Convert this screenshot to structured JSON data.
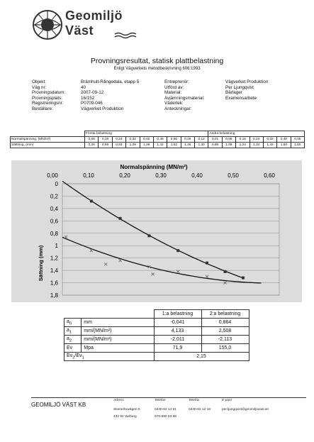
{
  "header": {
    "logo_line1": "Geomiljö",
    "logo_line2": "Väst",
    "title": "Provningsresultat, statisk plattbelastning",
    "subtitle": "Enligt Vägverkets metodbeskrivning 606:1993"
  },
  "info_left": [
    {
      "label": "Objekt:",
      "value": "Brämhult-Rångedala, etapp 5"
    },
    {
      "label": "Väg nr:",
      "value": "40"
    },
    {
      "label": "Provningsdatum:",
      "value": "2007-09-12"
    },
    {
      "label": "Provningsplats:",
      "value": "16/152"
    },
    {
      "label": "Registreringsnr:",
      "value": "P0709-046"
    },
    {
      "label": "Beställare:",
      "value": "Vägverket Produktion"
    }
  ],
  "info_right": [
    {
      "label": "Entreprenör:",
      "value": "Vägverket Produktion"
    },
    {
      "label": "Utförd av:",
      "value": "Per Ljungqvist"
    },
    {
      "label": "Material:",
      "value": "Bärlager"
    },
    {
      "label": "Avjämningsmaterial:",
      "value": ""
    },
    {
      "label": "Väderlek:",
      "value": ""
    },
    {
      "label": "Anteckningar:",
      "value": "Examensarbete"
    }
  ],
  "measurements": {
    "first_label": "Första belastning",
    "second_label": "Andra belastning",
    "row1_label": "Normalspänning, (MN/m²)",
    "row2_label": "Sättning, (mm)",
    "first_stress": [
      "0,08",
      "0,16",
      "0,24",
      "0,32",
      "0,40",
      "0,45",
      "0,50",
      "0,25",
      "0,12"
    ],
    "first_settle": [
      "0,28",
      "0,56",
      "0,84",
      "1,08",
      "1,28",
      "1,42",
      "1,52",
      "1,46",
      "1,30"
    ],
    "second_stress": [
      "0,01",
      "0,08",
      "0,16",
      "0,24",
      "0,32",
      "0,40",
      "0,45"
    ],
    "second_settle": [
      "0,86",
      "1,08",
      "1,24",
      "1,34",
      "1,42",
      "1,50",
      "1,60"
    ]
  },
  "chart_data": {
    "type": "scatter",
    "title": "Normalspänning (MN/m²)",
    "xlabel": "Normalspänning (MN/m²)",
    "ylabel": "Sättning (mm)",
    "xlim": [
      0,
      0.6
    ],
    "ylim": [
      0,
      1.8
    ],
    "y_inverted": true,
    "x_ticks": [
      "0,00",
      "0,10",
      "0,20",
      "0,30",
      "0,40",
      "0,50",
      "0,60"
    ],
    "y_ticks": [
      "0",
      "0,2",
      "0,4",
      "0,6",
      "0,8",
      "1",
      "1,2",
      "1,4",
      "1,6",
      "1,8"
    ],
    "grid": true,
    "series": [
      {
        "marker": "square",
        "color": "#333333",
        "x": [
          0.08,
          0.16,
          0.24,
          0.32,
          0.4,
          0.45,
          0.5
        ],
        "y": [
          0.28,
          0.56,
          0.84,
          1.08,
          1.28,
          1.42,
          1.52
        ]
      },
      {
        "marker": "x",
        "color": "#666666",
        "x": [
          0.25,
          0.12,
          0.01,
          0.08,
          0.16,
          0.24,
          0.32,
          0.4,
          0.45
        ],
        "y": [
          1.46,
          1.3,
          0.86,
          1.08,
          1.24,
          1.34,
          1.42,
          1.5,
          1.6
        ]
      }
    ],
    "curves": [
      {
        "coeffs": [
          -0.041,
          4.133,
          -2.011
        ],
        "x_range": [
          0,
          0.5
        ]
      },
      {
        "coeffs": [
          0.864,
          2.508,
          -2.113
        ],
        "x_range": [
          0,
          0.5
        ]
      },
      {
        "coeffs": [
          0.864,
          2.508,
          -2.113
        ],
        "x_range": [
          0.5,
          0.55
        ]
      }
    ]
  },
  "results": {
    "col1": "1:a belastning",
    "col2": "2:a belastning",
    "rows": [
      {
        "sym": "a",
        "sub": "0",
        "unit": "mm",
        "v1": "-0,041",
        "v2": "0,864"
      },
      {
        "sym": "a",
        "sub": "1",
        "unit": "mm/(MN/m²)",
        "v1": "4,133",
        "v2": "2,508"
      },
      {
        "sym": "a",
        "sub": "2",
        "unit": "mm/(MN/m²)",
        "v1": "-2,011",
        "v2": "-2,113"
      },
      {
        "sym": "Ev",
        "sub": "",
        "unit": "Mpa",
        "v1": "71,9",
        "v2": "155,0"
      }
    ],
    "ratio_label_a": "Ev",
    "ratio_sub_a": "2",
    "ratio_label_b": "/Ev",
    "ratio_sub_b": "1",
    "ratio_value": "2,15"
  },
  "footer": {
    "brand": "GEOMILJÖ VÄST KB",
    "h_adress": "Adress",
    "h_telefon": "Telefon",
    "h_telefax": "Telefax",
    "h_epost": "E-post",
    "address1": "Stinnerbovägen 5",
    "address2": "432 92 Varberg",
    "tel1": "0340-62 14 61",
    "tel2": "070-590 53 68",
    "fax": "0340-62 12 19",
    "email": "per.ljungqvist@geomiljovast.se"
  }
}
